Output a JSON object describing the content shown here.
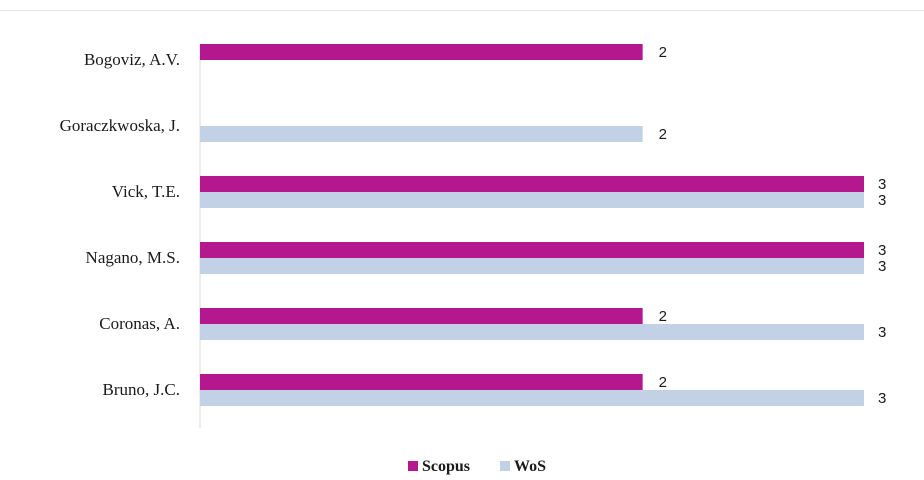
{
  "chart_data": {
    "type": "bar",
    "orientation": "horizontal",
    "categories": [
      "Bogoviz, A.V.",
      "Goraczkwoska, J.",
      "Vick, T.E.",
      "Nagano, M.S.",
      "Coronas, A.",
      "Bruno, J.C."
    ],
    "series": [
      {
        "name": "Scopus",
        "color": "#b5178f",
        "values": [
          2,
          null,
          3,
          3,
          2,
          2
        ]
      },
      {
        "name": "WoS",
        "color": "#c3d1e6",
        "values": [
          null,
          2,
          3,
          3,
          3,
          3
        ]
      }
    ],
    "xlim": [
      0,
      3
    ],
    "data_labels": true,
    "grid": false,
    "legend": "bottom-center"
  }
}
